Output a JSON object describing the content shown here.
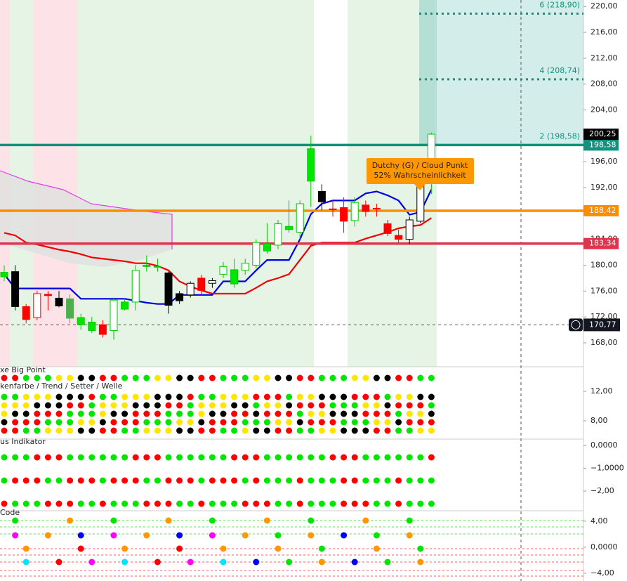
{
  "chart_data": [
    {
      "type": "candlestick",
      "open": [
        178.2,
        179,
        173.6,
        171.9,
        175.5,
        174.9,
        171.8,
        170.8,
        169.9,
        170.8,
        169.9,
        173.2,
        174.3,
        179.8,
        179.7,
        178.8,
        175.6,
        175.4,
        178,
        177.2,
        178.6,
        177.1,
        179.2,
        180,
        182.2,
        183.1,
        185.5,
        185.1,
        193,
        191.4,
        188.7,
        188.9,
        186.9,
        189.3,
        188.8,
        186.4,
        184.6,
        184,
        186.8,
        192.6
      ],
      "high": [
        180,
        180,
        174,
        176,
        176,
        176,
        175.5,
        172.5,
        172,
        171.5,
        175,
        174.8,
        180,
        181.5,
        181,
        179,
        176,
        177.5,
        178.5,
        178,
        180.5,
        181,
        181,
        184,
        186.5,
        187,
        190,
        190,
        200,
        192.5,
        190,
        190.5,
        190.5,
        190,
        189.5,
        187,
        185.5,
        187.5,
        193,
        200.5
      ],
      "low": [
        177.5,
        173,
        171,
        171.5,
        173,
        173.5,
        171,
        170,
        169.5,
        168.8,
        168.5,
        173,
        173,
        179,
        179,
        172.5,
        174,
        175,
        175.5,
        176.5,
        178,
        176.5,
        178.5,
        179.5,
        181.8,
        182.5,
        185,
        184,
        189,
        188.5,
        187.5,
        185,
        186,
        187.5,
        187.5,
        184.5,
        183.5,
        183.3,
        186.5,
        191
      ],
      "close": [
        178.9,
        173.6,
        171.6,
        175.6,
        175.3,
        173.7,
        174.8,
        171.9,
        171.2,
        169.3,
        174.6,
        174.3,
        179.2,
        180,
        179.8,
        173.8,
        174.5,
        177.2,
        176.1,
        177.6,
        179.8,
        179.3,
        180.3,
        183.5,
        183.3,
        186.4,
        186,
        189.5,
        198,
        189.8,
        188.6,
        186.8,
        189.7,
        188.3,
        188.7,
        184.9,
        184,
        187,
        192.6,
        200.25
      ],
      "fills": [
        "#00e600",
        "#000000",
        "#ff0000",
        "#ffffff",
        "#ff0000",
        "#000000",
        "#4caf50",
        "#00e600",
        "#00e600",
        "#ff0000",
        "#ffffff",
        "#00e600",
        "#ffffff",
        "#00e600",
        "#00e600",
        "#000000",
        "#000000",
        "#ffffff",
        "#ff0000",
        "#ffffff",
        "#ffffff",
        "#00e600",
        "#ffffff",
        "#ffffff",
        "#00e600",
        "#ffffff",
        "#00e600",
        "#ffffff",
        "#00e600",
        "#000000",
        "#ff0000",
        "#ff0000",
        "#ffffff",
        "#ff0000",
        "#ff0000",
        "#ff0000",
        "#ff0000",
        "#ffffff",
        "#ffffff",
        "#ffffff"
      ],
      "strokes": [
        "#00c800",
        "#000000",
        "#ff0000",
        "#ff0000",
        "#ff0000",
        "#000000",
        "#4caf50",
        "#00c800",
        "#00c800",
        "#ff0000",
        "#00c800",
        "#00c800",
        "#00c800",
        "#00c800",
        "#00c800",
        "#000000",
        "#000000",
        "#000000",
        "#ff0000",
        "#000000",
        "#00c800",
        "#00c800",
        "#00c800",
        "#00c800",
        "#00c800",
        "#00c800",
        "#00c800",
        "#00c800",
        "#00c800",
        "#000000",
        "#ff0000",
        "#ff0000",
        "#00c800",
        "#ff0000",
        "#ff0000",
        "#ff0000",
        "#ff0000",
        "#000000",
        "#000000",
        "#00c800"
      ],
      "series": [
        {
          "color": "#0000dd",
          "values": [
            178.6,
            176.4,
            176.4,
            176.4,
            176.4,
            176.4,
            176.4,
            174.8,
            174.8,
            174.8,
            174.8,
            174.8,
            174.5,
            174.2,
            174,
            174,
            175.4,
            175.4,
            175.4,
            175.4,
            177.5,
            177.5,
            177.5,
            179.2,
            180.8,
            180.8,
            180.8,
            184,
            187.9,
            189.5,
            190,
            190,
            190,
            191.1,
            191.4,
            190.8,
            190,
            187.8,
            188.2,
            191.7
          ]
        },
        {
          "color": "#ee0000",
          "values": [
            185,
            184.6,
            183.5,
            183.2,
            182.8,
            182.4,
            182.1,
            181.7,
            181.2,
            181,
            180.8,
            180.6,
            180.3,
            180.3,
            179.9,
            179.2,
            177.5,
            176.7,
            176.1,
            175.6,
            175.6,
            175.6,
            175.6,
            176.5,
            177.5,
            178,
            178.6,
            180.8,
            183,
            183.5,
            183.5,
            183.5,
            183.5,
            184.1,
            184.6,
            185.1,
            185.7,
            186,
            186.2,
            187.3
          ]
        }
      ],
      "levels": [
        {
          "value": 198.58,
          "label": "198,58",
          "color": "#13917f"
        },
        {
          "value": 188.42,
          "label": "188,42",
          "color": "#ff8c00"
        },
        {
          "value": 183.34,
          "label": "183,34",
          "color": "#e0344c"
        }
      ],
      "targets": [
        {
          "value": 218.9,
          "label": "6 (218,90)"
        },
        {
          "value": 208.74,
          "label": "4 (208,74)"
        },
        {
          "value": 198.58,
          "label": "2 (198,58)"
        }
      ],
      "last_price": {
        "value": 200.25,
        "label": "200,25"
      },
      "crosshair": {
        "value": 170.77,
        "label": "170,77"
      },
      "annotation": [
        "Dutchy (G) / Cloud Punkt",
        "52% Wahrscheinlichkeit"
      ],
      "ylim": [
        164.3,
        221
      ],
      "yticks": [
        {
          "value": 168,
          "label": "168,00"
        },
        {
          "value": 172,
          "label": "172,00"
        },
        {
          "value": 176,
          "label": "176,00"
        },
        {
          "value": 180,
          "label": "180,00"
        },
        {
          "value": 184,
          "label": "184,00"
        },
        {
          "value": 188,
          "label": "188,00"
        },
        {
          "value": 192,
          "label": "192,00"
        },
        {
          "value": 196,
          "label": "196,00"
        },
        {
          "value": 200,
          "label": "200,00"
        },
        {
          "value": 204,
          "label": "204,00"
        },
        {
          "value": 208,
          "label": "208,00"
        },
        {
          "value": 212,
          "label": "212,00"
        },
        {
          "value": 216,
          "label": "216,00"
        },
        {
          "value": 220,
          "label": "220,00"
        }
      ]
    },
    {
      "type": "indicator",
      "title": "xe Big Point",
      "subtitle": "kenfarbe / Trend / Setter / Welle",
      "ylim": [
        5.52,
        15.33
      ],
      "yticks": [
        {
          "value": 12,
          "label": "12,00"
        },
        {
          "value": 8,
          "label": "8,00"
        }
      ]
    },
    {
      "type": "indicator",
      "title": "us Indikator",
      "ylim": [
        -2.86,
        0.28
      ],
      "yticks": [
        {
          "value": 0,
          "label": "0,0000"
        },
        {
          "value": -1,
          "label": "−1,0000"
        },
        {
          "value": -2,
          "label": "−2,00"
        }
      ]
    },
    {
      "type": "indicator",
      "title": "Code",
      "ylim": [
        -5.2,
        5.6
      ],
      "yticks": [
        {
          "value": 4,
          "label": "4,00"
        },
        {
          "value": 0,
          "label": "0,0000"
        },
        {
          "value": -4,
          "label": "−4,00"
        }
      ]
    }
  ]
}
